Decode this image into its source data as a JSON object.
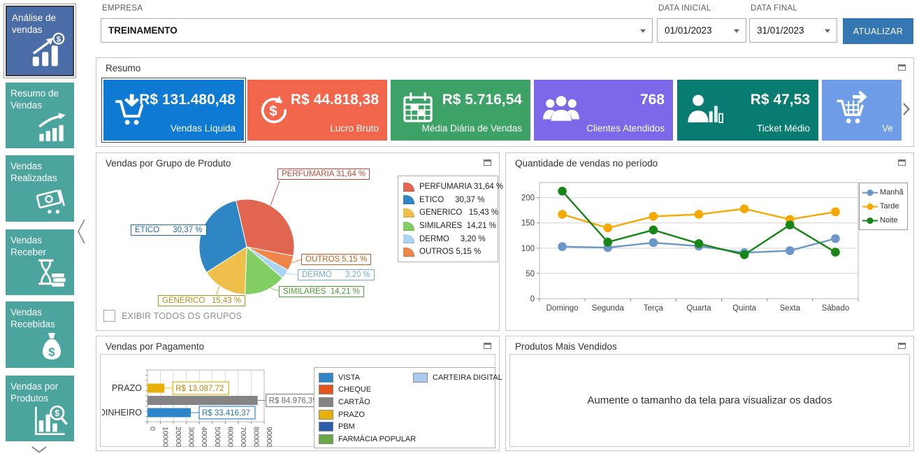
{
  "sidebar": {
    "colors": {
      "selected": "#4a6da8",
      "default": "#4ba49e"
    },
    "items": [
      {
        "label": "Análise de vendas",
        "icon": "bar-chart-growth-dollar-icon",
        "selected": true
      },
      {
        "label": "Resumo de Vendas",
        "icon": "growth-arrow-bars-icon"
      },
      {
        "label": "Vendas Realizadas",
        "icon": "money-cart-icon"
      },
      {
        "label": "Vendas Receber",
        "icon": "hourglass-money-icon"
      },
      {
        "label": "Vendas Recebidas",
        "icon": "money-bag-icon"
      },
      {
        "label": "Vendas por Produtos",
        "icon": "bar-chart-magnifier-icon"
      }
    ]
  },
  "topbar": {
    "empresa_label": "EMPRESA",
    "empresa_value": "TREINAMENTO",
    "data_inicial_label": "DATA INICIAL",
    "data_inicial_value": "01/01/2023",
    "data_final_label": "DATA FINAL",
    "data_final_value": "31/01/2023",
    "atualizar_label": "ATUALIZAR",
    "atualizar_color": "#3577b2"
  },
  "panels": {
    "resumo": {
      "title": "Resumo"
    },
    "grupo": {
      "title": "Vendas por Grupo de Produto"
    },
    "periodo": {
      "title": "Quantidade de vendas no período"
    },
    "pagamento": {
      "title": "Vendas por Pagamento"
    },
    "produtos": {
      "title": "Produtos Mais Vendidos",
      "message": "Aumente o tamanho da tela para visualizar os dados"
    }
  },
  "resumo_cards": [
    {
      "value": "R$ 131.480,48",
      "label": "Vendas Líquida",
      "color": "#0e7ad3",
      "icon": "cart-arrow-down-icon",
      "selected": true
    },
    {
      "value": "R$ 44.818,38",
      "label": "Lucro Bruto",
      "color": "#f2664c",
      "icon": "dollar-refresh-icon"
    },
    {
      "value": "R$ 5.716,54",
      "label": "Média Diária de Vendas",
      "color": "#3ca265",
      "icon": "calendar-icon"
    },
    {
      "value": "768",
      "label": "Clientes Atendidos",
      "color": "#7b69ea",
      "icon": "people-group-icon"
    },
    {
      "value": "R$ 47,53",
      "label": "Ticket Médio",
      "color": "#087c71",
      "icon": "person-chart-icon"
    },
    {
      "value": "",
      "label": "Ve",
      "color": "#6e9ce6",
      "icon": "cart-arrow-right-icon"
    }
  ],
  "chart_data": [
    {
      "type": "pie",
      "title": "Vendas por Grupo de Produto",
      "slices": [
        {
          "label": "PERFUMARIA",
          "value": 31.64,
          "color": "#e2654f",
          "text_color": "#b94a38",
          "legend_text": "PERFUMARIA 31,64 %",
          "callout_text": "PERFUMARIA 31,64 %"
        },
        {
          "label": "ETICO",
          "value": 30.37,
          "color": "#2e86c4",
          "text_color": "#1f6ca8",
          "legend_text": "ETICO     30,37 %",
          "callout_text": "ETICO      30,37 %"
        },
        {
          "label": "GENERICO",
          "value": 15.43,
          "color": "#efbf4b",
          "text_color": "#b08f1f",
          "legend_text": "GENERICO   15,43 %",
          "callout_text": "GENERICO   15,43 %"
        },
        {
          "label": "SIMILARES",
          "value": 14.21,
          "color": "#82ce62",
          "text_color": "#4f9a33",
          "legend_text": "SIMILARES  14,21 %",
          "callout_text": "SIMILARES  14,21 %"
        },
        {
          "label": "DERMO",
          "value": 3.2,
          "color": "#aad5f2",
          "text_color": "#74a9d8",
          "legend_text": "DERMO     3,20 %",
          "callout_text": "DERMO      3,20 %"
        },
        {
          "label": "OUTROS",
          "value": 5.15,
          "color": "#ee8549",
          "text_color": "#c45f1d",
          "legend_text": "OUTROS 5,15 %",
          "callout_text": "OUTROS 5,15 %"
        }
      ],
      "draw_sequence": [
        "PERFUMARIA",
        "OUTROS",
        "DERMO",
        "SIMILARES",
        "GENERICO",
        "ETICO"
      ],
      "start_angle_deg": -13,
      "checkbox_label": "EXIBIR TODOS OS GRUPOS",
      "checkbox_checked": false
    },
    {
      "type": "line",
      "title": "Quantidade de vendas no período",
      "categories": [
        "Domingo",
        "Segunda",
        "Terça",
        "Quarta",
        "Quinta",
        "Sexta",
        "Sábado"
      ],
      "series": [
        {
          "name": "Manhã",
          "color": "#6a96c8",
          "values": [
            103,
            101,
            111,
            104,
            91,
            95,
            119
          ]
        },
        {
          "name": "Tarde",
          "color": "#f5a800",
          "values": [
            167,
            140,
            163,
            167,
            178,
            157,
            172
          ]
        },
        {
          "name": "Noite",
          "color": "#168716",
          "values": [
            213,
            112,
            136,
            109,
            87,
            146,
            92
          ]
        }
      ],
      "yticks": [
        0,
        50,
        100,
        150,
        200
      ],
      "ylim": [
        0,
        230
      ],
      "grid": true,
      "legend_position": "top-right"
    },
    {
      "type": "bar",
      "title": "Vendas por Pagamento",
      "orientation": "horizontal",
      "categories": [
        "PRAZO",
        "CARTÃO",
        "DINHEIRO"
      ],
      "axis_labels": [
        "PRAZO",
        "",
        "DINHEIRO"
      ],
      "values": [
        13087.72,
        84976.39,
        33416.37
      ],
      "value_labels": [
        "R$ 13.087,72",
        "R$ 84.976,39",
        "R$ 33.416,37"
      ],
      "value_label_colors": [
        "#b8860b",
        "#6e6e6e",
        "#2e74b5"
      ],
      "bar_colors": [
        "#e8b007",
        "#848484",
        "#2e86c8"
      ],
      "xticks": [
        0,
        10000,
        20000,
        30000,
        40000,
        50000,
        60000,
        70000,
        80000,
        90000
      ],
      "xlim": [
        0,
        90000
      ],
      "grid": true,
      "legend": [
        {
          "label": "VISTA",
          "color": "#2e86c8"
        },
        {
          "label": "CHEQUE",
          "color": "#e8541e"
        },
        {
          "label": "CARTÃO",
          "color": "#848484"
        },
        {
          "label": "PRAZO",
          "color": "#e8b007"
        },
        {
          "label": "PBM",
          "color": "#2a5caa"
        },
        {
          "label": "FARMÁCIA POPULAR",
          "color": "#69a744"
        },
        {
          "label": "CARTEIRA DIGITAL",
          "color": "#aacbee"
        }
      ]
    }
  ]
}
